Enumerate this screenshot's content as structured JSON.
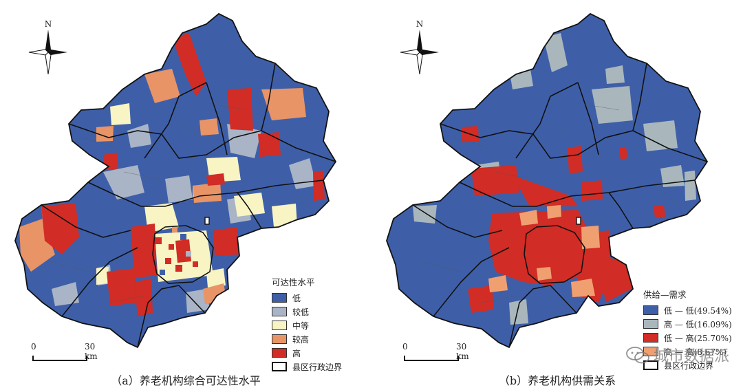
{
  "compass": {
    "north": "N"
  },
  "scale": {
    "zero": "0",
    "distance": "30 km"
  },
  "colors": {
    "low": "#3e5fa8",
    "lower": "#a9b4c6",
    "medium": "#f8f4c3",
    "higher": "#e89466",
    "high": "#d12c25",
    "hl": "#a9b7bd",
    "lh": "#d12c25",
    "hh": "#f0a070",
    "boundary": "#000000"
  },
  "panel_a": {
    "caption": "（a）养老机构综合可达性水平",
    "legend": {
      "title": "可达性水平",
      "items": [
        {
          "label": "低",
          "color": "#3e5fa8"
        },
        {
          "label": "较低",
          "color": "#a9b4c6"
        },
        {
          "label": "中等",
          "color": "#f8f4c3"
        },
        {
          "label": "较高",
          "color": "#e89466"
        },
        {
          "label": "高",
          "color": "#d12c25"
        },
        {
          "label": "县区行政边界",
          "color": "#ffffff"
        }
      ]
    }
  },
  "panel_b": {
    "caption": "（b）养老机构供需关系",
    "legend": {
      "title": "供给—需求",
      "items": [
        {
          "label": "低 — 低(49.54%)",
          "color": "#3e5fa8"
        },
        {
          "label": "高 — 低(16.09%)",
          "color": "#a9b7bd"
        },
        {
          "label": "低 — 高(25.70%)",
          "color": "#d12c25"
        },
        {
          "label": "高 — 高(8.67%)",
          "color": "#f0a070"
        },
        {
          "label": "县区行政边界",
          "color": "#ffffff"
        }
      ]
    }
  },
  "watermark": {
    "text": "城市数据派"
  }
}
